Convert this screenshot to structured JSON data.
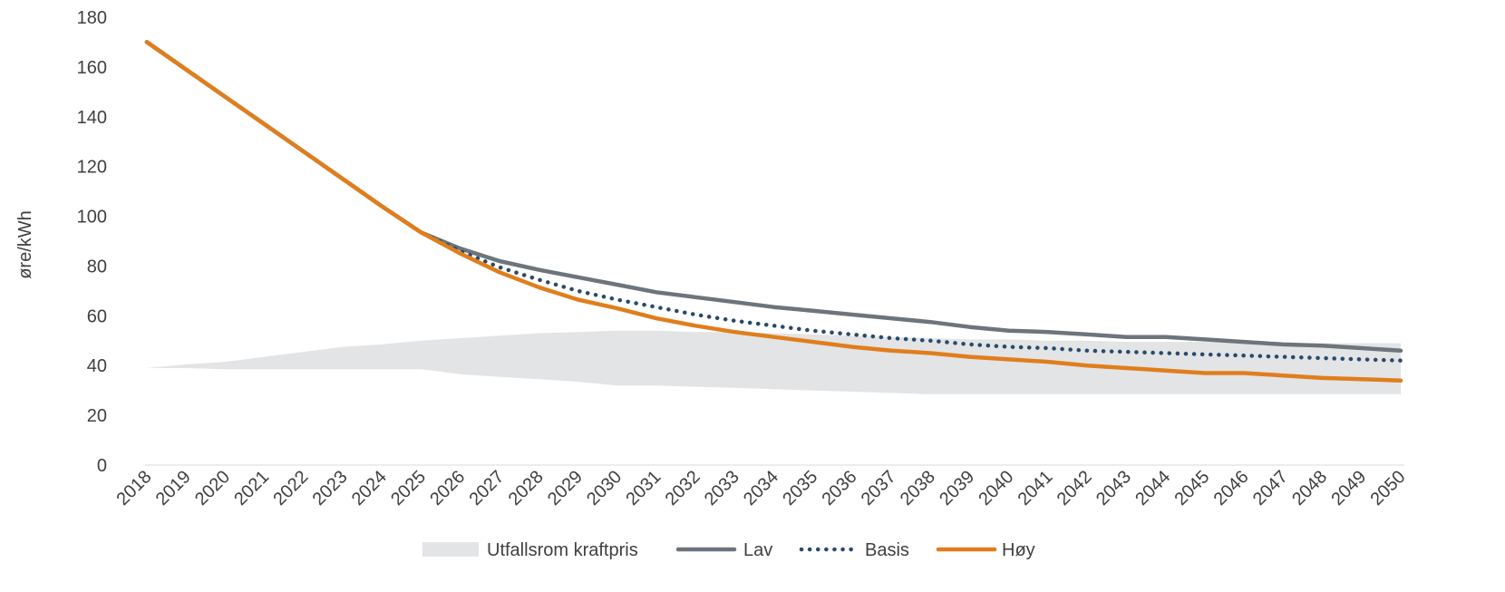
{
  "chart_data": {
    "type": "line",
    "xlabel": "",
    "ylabel": "øre/kWh",
    "ylim": [
      0,
      180
    ],
    "yticks": [
      0,
      20,
      40,
      60,
      80,
      100,
      120,
      140,
      160,
      180
    ],
    "grid": false,
    "legend_position": "bottom",
    "x": [
      2018,
      2019,
      2020,
      2021,
      2022,
      2023,
      2024,
      2025,
      2026,
      2027,
      2028,
      2029,
      2030,
      2031,
      2032,
      2033,
      2034,
      2035,
      2036,
      2037,
      2038,
      2039,
      2040,
      2041,
      2042,
      2043,
      2044,
      2045,
      2046,
      2047,
      2048,
      2049,
      2050
    ],
    "band": {
      "name": "Utfallsrom kraftpris",
      "color": "#e3e4e6",
      "upper": [
        39,
        40.5,
        41.5,
        43.5,
        45.5,
        47.5,
        48.5,
        50,
        51,
        52,
        53,
        53.5,
        54,
        54,
        53.5,
        53.5,
        53,
        52.5,
        52,
        51.5,
        51,
        50.5,
        50.5,
        50,
        50,
        49.5,
        49.5,
        49.5,
        49.5,
        49,
        49,
        49,
        49
      ],
      "lower": [
        39,
        39,
        38.5,
        38.5,
        38.5,
        38.5,
        38.5,
        38.5,
        36.5,
        35.5,
        34.5,
        33.5,
        32,
        32,
        31.5,
        31,
        30.5,
        30,
        29.5,
        29,
        28.5,
        28.5,
        28.5,
        28.5,
        28.5,
        28.5,
        28.5,
        28.5,
        28.5,
        28.5,
        28.5,
        28.5,
        28.5
      ]
    },
    "series": [
      {
        "name": "Lav",
        "color": "#6d747c",
        "style": "solid",
        "values": [
          170,
          159,
          148,
          137,
          126,
          115,
          104,
          93.5,
          87,
          82,
          78.5,
          75.5,
          72.5,
          69.5,
          67.5,
          65.5,
          63.5,
          62,
          60.5,
          59,
          57.5,
          55.5,
          54,
          53.5,
          52.5,
          51.5,
          51.5,
          50.5,
          49.5,
          48.5,
          48,
          47,
          46
        ]
      },
      {
        "name": "Basis",
        "color": "#2b4a6b",
        "style": "dotted",
        "values": [
          170,
          159,
          148,
          137,
          126,
          115,
          104,
          93.5,
          86,
          79.5,
          74.5,
          70,
          66.5,
          63.5,
          60.5,
          58,
          56,
          54,
          52.5,
          51,
          50,
          48.5,
          47.5,
          47,
          46,
          45.5,
          45,
          44.5,
          44,
          43.5,
          43,
          42.5,
          42
        ]
      },
      {
        "name": "Høy",
        "color": "#e07e1c",
        "style": "solid",
        "values": [
          170,
          159,
          148,
          137,
          126,
          115,
          104,
          93.5,
          85,
          77.5,
          71.5,
          66.5,
          63,
          59,
          56,
          53.5,
          51.5,
          49.5,
          47.5,
          46,
          45,
          43.5,
          42.5,
          41.5,
          40,
          39,
          38,
          37,
          37,
          36,
          35,
          34.5,
          34
        ]
      }
    ]
  }
}
